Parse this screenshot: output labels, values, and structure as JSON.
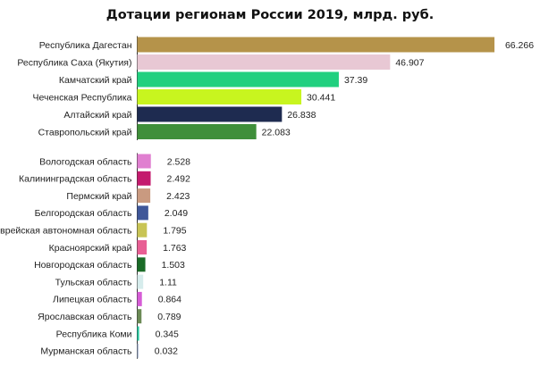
{
  "chart_data": {
    "type": "bar",
    "orientation": "horizontal",
    "title": "Дотации регионам России 2019, млрд. руб.",
    "xlabel": "",
    "ylabel": "",
    "grid": false,
    "groups": [
      {
        "items": [
          {
            "category": "Республика Дагестан",
            "value": 66.266,
            "value_label": "66.266",
            "color": "#b5934a"
          },
          {
            "category": "Республика Саха (Якутия)",
            "value": 46.907,
            "value_label": "46.907",
            "color": "#e8c8d4"
          },
          {
            "category": "Камчатский край",
            "value": 37.39,
            "value_label": "37.39",
            "color": "#21d07f"
          },
          {
            "category": "Чеченская Республика",
            "value": 30.441,
            "value_label": "30.441",
            "color": "#c8f51f"
          },
          {
            "category": "Алтайский край",
            "value": 26.838,
            "value_label": "26.838",
            "color": "#1e2b50"
          },
          {
            "category": "Ставропольский край",
            "value": 22.083,
            "value_label": "22.083",
            "color": "#3f8f3a"
          }
        ]
      },
      {
        "items": [
          {
            "category": "Вологодская область",
            "value": 2.528,
            "value_label": "2.528",
            "color": "#e07fd0"
          },
          {
            "category": "Калининградская область",
            "value": 2.492,
            "value_label": "2.492",
            "color": "#c41b6e"
          },
          {
            "category": "Пермский край",
            "value": 2.423,
            "value_label": "2.423",
            "color": "#c99a80"
          },
          {
            "category": "Белгородская область",
            "value": 2.049,
            "value_label": "2.049",
            "color": "#3f5799"
          },
          {
            "category": "Еврейская автономная область",
            "value": 1.795,
            "value_label": "1.795",
            "color": "#c8c455"
          },
          {
            "category": "Красноярский край",
            "value": 1.763,
            "value_label": "1.763",
            "color": "#e85f94"
          },
          {
            "category": "Новгородская область",
            "value": 1.503,
            "value_label": "1.503",
            "color": "#1a6b27"
          },
          {
            "category": "Тульская область",
            "value": 1.11,
            "value_label": "1.11",
            "color": "#d6ecec"
          },
          {
            "category": "Липецкая область",
            "value": 0.864,
            "value_label": "0.864",
            "color": "#d65cd6"
          },
          {
            "category": "Ярославская область",
            "value": 0.789,
            "value_label": "0.789",
            "color": "#6b8a55"
          },
          {
            "category": "Республика Коми",
            "value": 0.345,
            "value_label": "0.345",
            "color": "#26c9a0"
          },
          {
            "category": "Мурманская область",
            "value": 0.032,
            "value_label": "0.032",
            "color": "#9aa8c8"
          }
        ]
      }
    ]
  }
}
